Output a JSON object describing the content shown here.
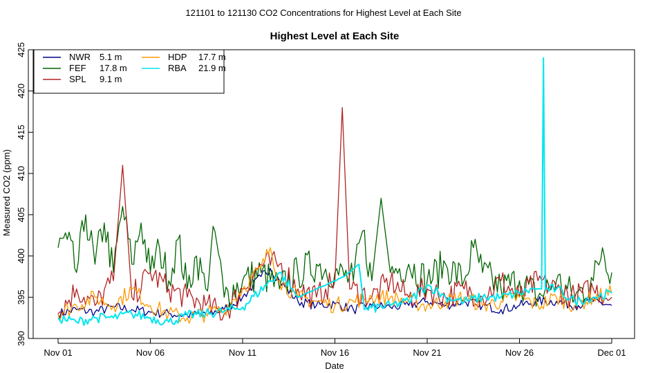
{
  "page_title": "121101  to  121130 CO2 Concentrations for Highest Level at Each Site",
  "chart_data": {
    "type": "line",
    "title": "Highest Level at Each Site",
    "xlabel": "Date",
    "ylabel": "Measured CO2 (ppm)",
    "xlim": [
      0,
      30.5
    ],
    "ylim": [
      390,
      425
    ],
    "x_unit": "days since Nov 01",
    "x_ticks": [
      {
        "value": 0,
        "label": "Nov 01"
      },
      {
        "value": 5,
        "label": "Nov 06"
      },
      {
        "value": 10,
        "label": "Nov 11"
      },
      {
        "value": 15,
        "label": "Nov 16"
      },
      {
        "value": 20,
        "label": "Nov 21"
      },
      {
        "value": 25,
        "label": "Nov 26"
      },
      {
        "value": 30,
        "label": "Dec 01"
      }
    ],
    "y_ticks": [
      390,
      395,
      400,
      405,
      410,
      415,
      420,
      425
    ],
    "legend_position": "top-left",
    "series": [
      {
        "name": "NWR",
        "height": "5.1 m",
        "color": "#00008b",
        "points": [
          [
            0,
            393
          ],
          [
            1,
            393.5
          ],
          [
            2,
            393.2
          ],
          [
            3,
            393.8
          ],
          [
            4,
            393.5
          ],
          [
            5,
            393.2
          ],
          [
            6,
            393
          ],
          [
            7,
            392.8
          ],
          [
            8,
            393
          ],
          [
            9,
            393.5
          ],
          [
            10,
            395
          ],
          [
            11,
            397.5
          ],
          [
            11.5,
            398.5
          ],
          [
            12,
            397
          ],
          [
            13,
            394.5
          ],
          [
            14,
            394
          ],
          [
            15,
            394.2
          ],
          [
            16,
            393.5
          ],
          [
            17,
            394
          ],
          [
            18,
            393.8
          ],
          [
            19,
            394
          ],
          [
            20,
            394.5
          ],
          [
            21,
            394
          ],
          [
            22,
            394.5
          ],
          [
            23,
            394
          ],
          [
            24,
            393.5
          ],
          [
            25,
            394
          ],
          [
            26,
            394.5
          ],
          [
            27,
            394.5
          ],
          [
            28,
            394
          ],
          [
            29,
            394.5
          ],
          [
            30,
            394
          ]
        ]
      },
      {
        "name": "FEF",
        "height": "17.8 m",
        "color": "#006400",
        "points": [
          [
            0,
            401
          ],
          [
            0.5,
            402
          ],
          [
            1,
            398
          ],
          [
            1.5,
            405
          ],
          [
            2,
            399
          ],
          [
            2.5,
            404
          ],
          [
            3,
            398
          ],
          [
            3.5,
            406
          ],
          [
            4,
            399
          ],
          [
            4.5,
            404
          ],
          [
            5,
            398
          ],
          [
            5.5,
            401
          ],
          [
            6,
            397
          ],
          [
            6.5,
            402
          ],
          [
            7,
            396
          ],
          [
            7.5,
            400
          ],
          [
            8,
            396
          ],
          [
            8.5,
            403
          ],
          [
            9,
            395
          ],
          [
            10,
            397
          ],
          [
            11,
            398
          ],
          [
            12,
            396
          ],
          [
            13,
            398
          ],
          [
            14,
            399
          ],
          [
            15,
            398
          ],
          [
            16,
            397
          ],
          [
            16.5,
            403
          ],
          [
            17,
            397
          ],
          [
            17.5,
            407
          ],
          [
            18,
            398
          ],
          [
            19,
            399
          ],
          [
            20,
            397
          ],
          [
            21,
            399
          ],
          [
            22,
            397
          ],
          [
            22.5,
            401
          ],
          [
            23,
            398
          ],
          [
            24,
            396
          ],
          [
            25,
            397
          ],
          [
            26,
            395
          ],
          [
            27,
            397
          ],
          [
            28,
            395
          ],
          [
            29,
            397
          ],
          [
            29.5,
            401
          ],
          [
            30,
            398
          ]
        ]
      },
      {
        "name": "SPL",
        "height": "9.1 m",
        "color": "#b22222",
        "points": [
          [
            0,
            393
          ],
          [
            1,
            396
          ],
          [
            2,
            394
          ],
          [
            3,
            397
          ],
          [
            3.5,
            411
          ],
          [
            4,
            395
          ],
          [
            5,
            398
          ],
          [
            6,
            396
          ],
          [
            7,
            395
          ],
          [
            8,
            394
          ],
          [
            9,
            393
          ],
          [
            10,
            396
          ],
          [
            11,
            399
          ],
          [
            12,
            399
          ],
          [
            13,
            396
          ],
          [
            14,
            395
          ],
          [
            14.5,
            396
          ],
          [
            15,
            397
          ],
          [
            15.4,
            418
          ],
          [
            15.8,
            396
          ],
          [
            17,
            395
          ],
          [
            18,
            397
          ],
          [
            19,
            395
          ],
          [
            20,
            396
          ],
          [
            21,
            395
          ],
          [
            22,
            396
          ],
          [
            23,
            395
          ],
          [
            24,
            397
          ],
          [
            25,
            395
          ],
          [
            26,
            397
          ],
          [
            27,
            396
          ],
          [
            28,
            395
          ],
          [
            29,
            396
          ],
          [
            30,
            395
          ]
        ]
      },
      {
        "name": "HDP",
        "height": "17.7 m",
        "color": "#ff9900",
        "points": [
          [
            0,
            393
          ],
          [
            1,
            394
          ],
          [
            2,
            395
          ],
          [
            3,
            394
          ],
          [
            4,
            396
          ],
          [
            5,
            394
          ],
          [
            6,
            393
          ],
          [
            7,
            392.5
          ],
          [
            8,
            393
          ],
          [
            9,
            393.5
          ],
          [
            10,
            396
          ],
          [
            11,
            398.5
          ],
          [
            11.5,
            401
          ],
          [
            12,
            397
          ],
          [
            13,
            395
          ],
          [
            14,
            394.5
          ],
          [
            15,
            394
          ],
          [
            16,
            394.5
          ],
          [
            17,
            395
          ],
          [
            18,
            395
          ],
          [
            19,
            394.5
          ],
          [
            20,
            394
          ],
          [
            21,
            394.5
          ],
          [
            22,
            395
          ],
          [
            23,
            394
          ],
          [
            24,
            394.5
          ],
          [
            25,
            395
          ],
          [
            26,
            394
          ],
          [
            27,
            395
          ],
          [
            28,
            394
          ],
          [
            29,
            395
          ],
          [
            30,
            395.5
          ]
        ]
      },
      {
        "name": "RBA",
        "height": "21.9 m",
        "color": "#00e5ee",
        "points": [
          [
            0,
            392.5
          ],
          [
            1,
            392
          ],
          [
            2,
            392.5
          ],
          [
            3,
            392.5
          ],
          [
            4,
            393
          ],
          [
            5,
            392.5
          ],
          [
            6,
            392
          ],
          [
            7,
            392.8
          ],
          [
            8,
            393
          ],
          [
            9,
            393.3
          ],
          [
            10,
            393.8
          ],
          [
            12,
            398
          ],
          [
            13,
            395
          ],
          [
            15.5,
            397.5
          ],
          [
            16.3,
            399
          ],
          [
            16.6,
            393.5
          ],
          [
            18,
            394
          ],
          [
            19,
            394.5
          ],
          [
            20,
            396.5
          ],
          [
            21,
            395
          ],
          [
            22,
            394.5
          ],
          [
            23,
            395
          ],
          [
            24,
            395
          ],
          [
            25,
            395.5
          ],
          [
            25.8,
            396
          ],
          [
            26.2,
            396
          ],
          [
            26.3,
            424
          ],
          [
            26.4,
            396
          ],
          [
            27,
            396
          ],
          [
            28,
            394.5
          ],
          [
            29,
            395
          ],
          [
            30,
            395.5
          ]
        ]
      }
    ]
  }
}
